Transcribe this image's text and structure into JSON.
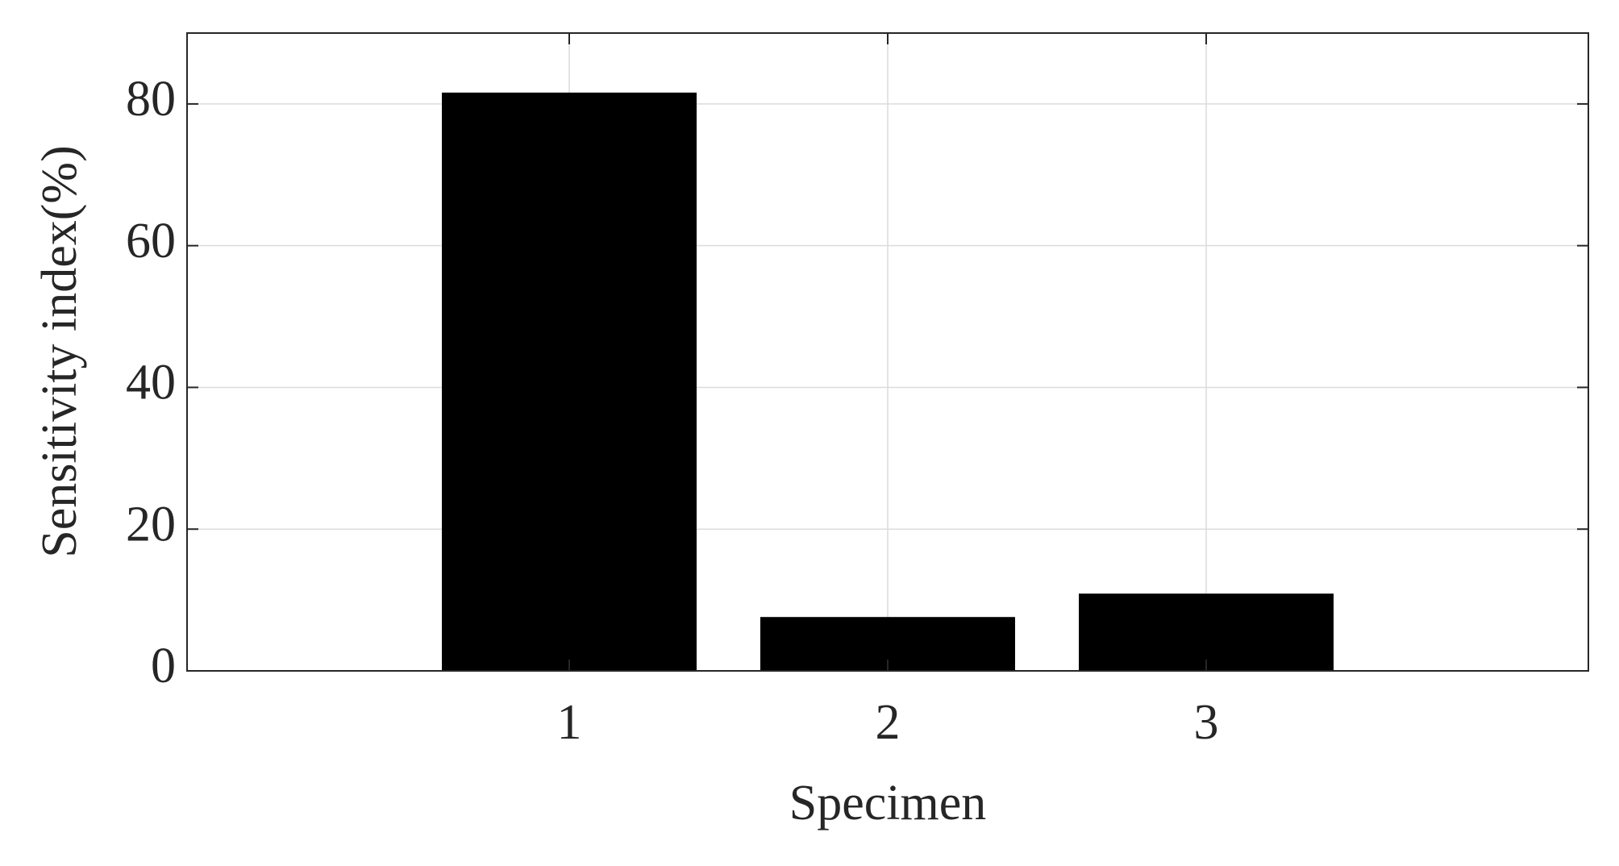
{
  "chart_data": {
    "type": "bar",
    "x_label": "Specimen",
    "y_label": "Sensitivity index(%)",
    "x": [
      1,
      2,
      3
    ],
    "values": [
      81.6,
      7.6,
      10.9
    ],
    "color": "#000000",
    "xlim": [
      -0.2,
      4.2
    ],
    "xticks": [
      1,
      2,
      3
    ],
    "ylim": [
      0,
      90
    ],
    "yticks": [
      0,
      20,
      40,
      60,
      80
    ],
    "grid": true
  }
}
